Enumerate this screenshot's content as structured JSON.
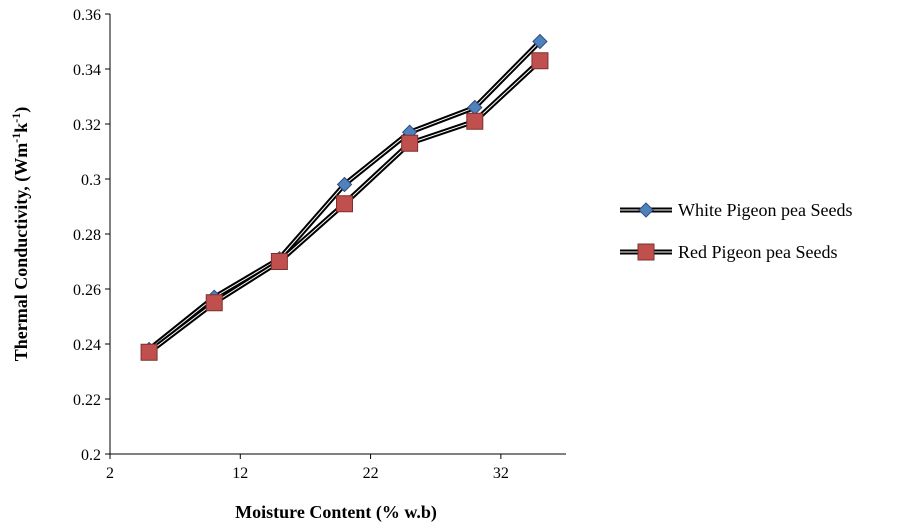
{
  "chart_data": {
    "type": "line",
    "xlabel": "Moisture Content (% w.b)",
    "ylabel": {
      "main": "Thermal Conductivity, (Wm",
      "sup1": "-1",
      "mid": "k",
      "sup2": "-1",
      "end": ")"
    },
    "xlim": [
      2,
      37
    ],
    "ylim": [
      0.2,
      0.36
    ],
    "x_ticks": [
      2,
      12,
      22,
      32
    ],
    "y_ticks": [
      0.2,
      0.22,
      0.24,
      0.26,
      0.28,
      0.3,
      0.32,
      0.34,
      0.36
    ],
    "x_tick_labels": [
      "2",
      "12",
      "22",
      "32"
    ],
    "y_tick_labels": [
      "0.2",
      "0.22",
      "0.24",
      "0.26",
      "0.28",
      "0.3",
      "0.32",
      "0.34",
      "0.36"
    ],
    "grid": false,
    "legend_position": "right",
    "series": [
      {
        "name": "White Pigeon pea Seeds",
        "marker": "diamond",
        "color": "#4F81BD",
        "x": [
          5,
          10,
          15,
          20,
          25,
          30,
          35
        ],
        "y": [
          0.238,
          0.257,
          0.271,
          0.298,
          0.317,
          0.326,
          0.35
        ]
      },
      {
        "name": "Red Pigeon pea Seeds",
        "marker": "square",
        "color": "#C0504D",
        "x": [
          5,
          10,
          15,
          20,
          25,
          30,
          35
        ],
        "y": [
          0.237,
          0.255,
          0.27,
          0.291,
          0.313,
          0.321,
          0.343
        ]
      }
    ]
  }
}
